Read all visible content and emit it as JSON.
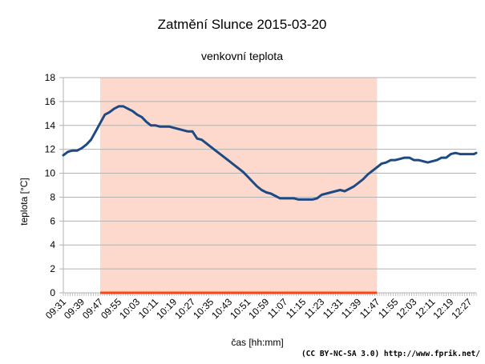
{
  "chart_data": {
    "type": "line",
    "title": "Zatmění Slunce 2015-03-20",
    "subtitle": "venkovní teplota",
    "xlabel": "čas [hh:mm]",
    "ylabel": "teplota [°C]",
    "ylim": [
      0,
      18
    ],
    "yticks": [
      0,
      2,
      4,
      6,
      8,
      10,
      12,
      14,
      16,
      18
    ],
    "xlim": [
      "09:31",
      "12:30"
    ],
    "xtick_labels": [
      "09:31",
      "09:39",
      "09:47",
      "09:55",
      "10:03",
      "10:11",
      "10:19",
      "10:27",
      "10:35",
      "10:43",
      "10:51",
      "10:59",
      "11:07",
      "11:15",
      "11:23",
      "11:31",
      "11:39",
      "11:47",
      "11:55",
      "12:03",
      "12:11",
      "12:19",
      "12:27"
    ],
    "grid": true,
    "eclipse_band": {
      "start": "09:47",
      "end": "11:47",
      "color": "#fcd9cc"
    },
    "eclipse_baseline_color": "#ff4411",
    "series": [
      {
        "color": "#1e4a84",
        "x": [
          "09:31",
          "09:33",
          "09:35",
          "09:37",
          "09:39",
          "09:41",
          "09:43",
          "09:45",
          "09:47",
          "09:49",
          "09:51",
          "09:53",
          "09:55",
          "09:57",
          "09:59",
          "10:01",
          "10:03",
          "10:05",
          "10:07",
          "10:09",
          "10:11",
          "10:13",
          "10:15",
          "10:17",
          "10:19",
          "10:21",
          "10:23",
          "10:25",
          "10:27",
          "10:29",
          "10:31",
          "10:33",
          "10:35",
          "10:37",
          "10:39",
          "10:41",
          "10:43",
          "10:45",
          "10:47",
          "10:49",
          "10:51",
          "10:53",
          "10:55",
          "10:57",
          "10:59",
          "11:01",
          "11:03",
          "11:05",
          "11:07",
          "11:09",
          "11:11",
          "11:13",
          "11:15",
          "11:17",
          "11:19",
          "11:21",
          "11:23",
          "11:25",
          "11:27",
          "11:29",
          "11:31",
          "11:33",
          "11:35",
          "11:37",
          "11:39",
          "11:41",
          "11:43",
          "11:45",
          "11:47",
          "11:49",
          "11:51",
          "11:53",
          "11:55",
          "11:57",
          "11:59",
          "12:01",
          "12:03",
          "12:05",
          "12:07",
          "12:09",
          "12:11",
          "12:13",
          "12:15",
          "12:17",
          "12:19",
          "12:21",
          "12:23",
          "12:25",
          "12:27",
          "12:29",
          "12:30"
        ],
        "y": [
          11.5,
          11.8,
          11.9,
          11.9,
          12.1,
          12.4,
          12.8,
          13.5,
          14.2,
          14.9,
          15.1,
          15.4,
          15.6,
          15.6,
          15.4,
          15.2,
          14.9,
          14.7,
          14.3,
          14.0,
          14.0,
          13.9,
          13.9,
          13.9,
          13.8,
          13.7,
          13.6,
          13.5,
          13.5,
          12.9,
          12.8,
          12.5,
          12.2,
          11.9,
          11.6,
          11.3,
          11.0,
          10.7,
          10.4,
          10.1,
          9.7,
          9.3,
          8.9,
          8.6,
          8.4,
          8.3,
          8.1,
          7.9,
          7.9,
          7.9,
          7.9,
          7.8,
          7.8,
          7.8,
          7.8,
          7.9,
          8.2,
          8.3,
          8.4,
          8.5,
          8.6,
          8.5,
          8.7,
          8.9,
          9.2,
          9.5,
          9.9,
          10.2,
          10.5,
          10.8,
          10.9,
          11.1,
          11.1,
          11.2,
          11.3,
          11.3,
          11.1,
          11.1,
          11.0,
          10.9,
          11.0,
          11.1,
          11.3,
          11.3,
          11.6,
          11.7,
          11.6,
          11.6,
          11.6,
          11.6,
          11.7
        ]
      }
    ]
  },
  "credit": "(CC BY-NC-SA 3.0) http://www.fprik.net/"
}
